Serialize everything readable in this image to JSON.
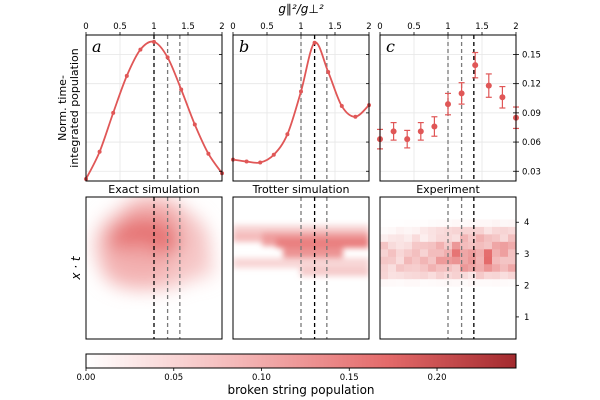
{
  "chart_data": [
    {
      "id": "a",
      "type": "line",
      "panel_letter": "a",
      "xlim": [
        0,
        2
      ],
      "ylim": [
        0.02,
        0.17
      ],
      "x": [
        0,
        0.2,
        0.4,
        0.6,
        0.8,
        1.0,
        1.2,
        1.4,
        1.6,
        1.8,
        2.0
      ],
      "values": [
        0.022,
        0.05,
        0.09,
        0.128,
        0.155,
        0.163,
        0.147,
        0.114,
        0.078,
        0.048,
        0.028
      ],
      "color": "#e05757",
      "vlines": [
        {
          "x": 1.0,
          "style": "black"
        },
        {
          "x": 1.2,
          "style": "gray"
        },
        {
          "x": 1.38,
          "style": "gray"
        }
      ]
    },
    {
      "id": "b",
      "type": "line",
      "panel_letter": "b",
      "xlim": [
        0,
        2
      ],
      "ylim": [
        0.02,
        0.17
      ],
      "x": [
        0,
        0.2,
        0.4,
        0.6,
        0.8,
        1.0,
        1.2,
        1.4,
        1.6,
        1.8,
        2.0
      ],
      "values": [
        0.042,
        0.04,
        0.039,
        0.047,
        0.068,
        0.112,
        0.162,
        0.132,
        0.097,
        0.086,
        0.098
      ],
      "color": "#e05757",
      "vlines": [
        {
          "x": 1.0,
          "style": "gray"
        },
        {
          "x": 1.2,
          "style": "black"
        },
        {
          "x": 1.38,
          "style": "gray"
        }
      ]
    },
    {
      "id": "c",
      "type": "scatter",
      "panel_letter": "c",
      "xlim": [
        0,
        2
      ],
      "ylim": [
        0.02,
        0.17
      ],
      "x": [
        0,
        0.2,
        0.4,
        0.6,
        0.8,
        1.0,
        1.2,
        1.4,
        1.6,
        1.8,
        2.0
      ],
      "values": [
        0.063,
        0.071,
        0.063,
        0.071,
        0.076,
        0.099,
        0.11,
        0.139,
        0.118,
        0.106,
        0.085
      ],
      "errors": [
        0.01,
        0.009,
        0.009,
        0.009,
        0.01,
        0.011,
        0.011,
        0.013,
        0.012,
        0.011,
        0.011
      ],
      "color": "#e05757",
      "yticks": [
        0.03,
        0.06,
        0.09,
        0.12,
        0.15
      ],
      "vlines": [
        {
          "x": 1.0,
          "style": "gray"
        },
        {
          "x": 1.2,
          "style": "gray"
        },
        {
          "x": 1.38,
          "style": "black"
        }
      ]
    },
    {
      "id": "d",
      "type": "heatmap",
      "title": "Exact simulation",
      "xlim": [
        0,
        2
      ],
      "ylim": [
        0.3,
        4.8
      ],
      "vlines": [
        {
          "x": 1.0,
          "style": "black"
        },
        {
          "x": 1.2,
          "style": "gray"
        },
        {
          "x": 1.38,
          "style": "gray"
        }
      ]
    },
    {
      "id": "e",
      "type": "heatmap",
      "title": "Trotter simulation",
      "xlim": [
        0,
        2
      ],
      "ylim": [
        0.3,
        4.8
      ],
      "vlines": [
        {
          "x": 1.0,
          "style": "gray"
        },
        {
          "x": 1.2,
          "style": "black"
        },
        {
          "x": 1.38,
          "style": "gray"
        }
      ]
    },
    {
      "id": "f",
      "type": "heatmap",
      "title": "Experiment",
      "xlim": [
        0,
        2
      ],
      "ylim": [
        0.3,
        4.8
      ],
      "yticks": [
        1,
        2,
        3,
        4
      ],
      "vlines": [
        {
          "x": 1.0,
          "style": "gray"
        },
        {
          "x": 1.2,
          "style": "gray"
        },
        {
          "x": 1.38,
          "style": "black"
        }
      ]
    }
  ],
  "figure": {
    "top_xlabel": "g∥²/g⊥²",
    "top_xticks": [
      "0",
      "0.5",
      "1",
      "1.5",
      "2"
    ],
    "top_ylabel_line1": "Norm. time-",
    "top_ylabel_line2": "integrated population",
    "bottom_ylabel": "x · t",
    "colorbar": {
      "label": "broken string population",
      "range": [
        0,
        0.245
      ],
      "ticks": [
        "0.00",
        "0.05",
        "0.10",
        "0.15",
        "0.20"
      ],
      "tick_values": [
        0,
        0.05,
        0.1,
        0.15,
        0.2
      ],
      "color_low": "#ffffff",
      "color_high": "#a32a2e"
    }
  }
}
